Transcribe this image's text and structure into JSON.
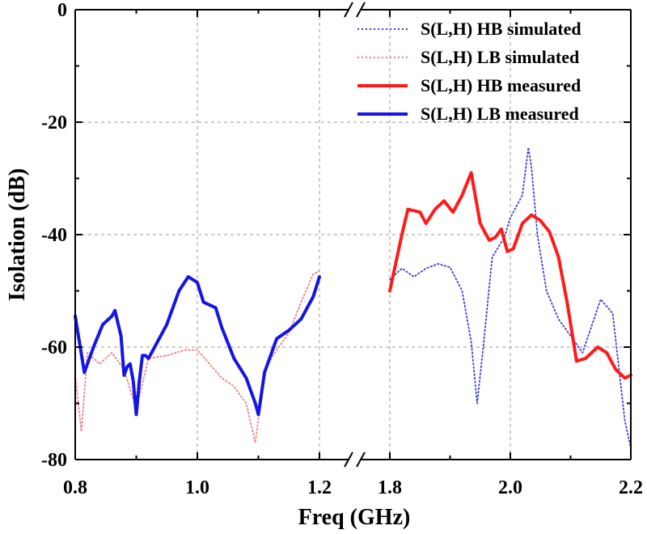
{
  "chart_data": {
    "type": "line",
    "xlabel": "Freq (GHz)",
    "ylabel": "Isolation (dB)",
    "ylim": [
      -80,
      0
    ],
    "y_ticks": [
      0,
      -20,
      -40,
      -60,
      -80
    ],
    "x_axis_break": true,
    "x_segments": [
      {
        "range": [
          0.8,
          1.2
        ],
        "ticks": [
          "0.8",
          "1.0",
          "1.2"
        ]
      },
      {
        "range": [
          1.8,
          2.2
        ],
        "ticks": [
          "1.8",
          "2.0",
          "2.2"
        ]
      }
    ],
    "grid": true,
    "legend_position": "top-right",
    "series": [
      {
        "name": "S(L,H) HB simulated",
        "color": "#3a3adf",
        "style": "dotted",
        "segment": 1,
        "x": [
          1.8,
          1.82,
          1.84,
          1.86,
          1.88,
          1.9,
          1.92,
          1.935,
          1.945,
          1.955,
          1.97,
          1.99,
          2.0,
          2.02,
          2.03,
          2.035,
          2.045,
          2.06,
          2.08,
          2.1,
          2.12,
          2.15,
          2.17,
          2.19,
          2.2
        ],
        "y": [
          -48,
          -46,
          -47.5,
          -46,
          -45.2,
          -45.8,
          -50,
          -59,
          -70,
          -60,
          -44,
          -40.5,
          -37,
          -33,
          -24.5,
          -28,
          -40,
          -50,
          -55,
          -58,
          -61,
          -51.5,
          -54,
          -73,
          -78
        ]
      },
      {
        "name": "S(L,H) LB simulated",
        "color": "#f08080",
        "style": "dotted",
        "segment": 0,
        "x": [
          0.8,
          0.81,
          0.82,
          0.84,
          0.86,
          0.88,
          0.9,
          0.92,
          0.95,
          0.98,
          1.0,
          1.02,
          1.04,
          1.06,
          1.08,
          1.095,
          1.11,
          1.13,
          1.15,
          1.17,
          1.19,
          1.2
        ],
        "y": [
          -65,
          -75,
          -61,
          -63,
          -61,
          -64,
          -71,
          -62,
          -61.5,
          -60.5,
          -60.5,
          -63,
          -65.5,
          -67,
          -70,
          -77,
          -64,
          -60.5,
          -57.5,
          -52,
          -47,
          -46.5
        ]
      },
      {
        "name": "S(L,H) HB measured",
        "color": "#ff1a1a",
        "style": "solid",
        "segment": 1,
        "x": [
          1.8,
          1.82,
          1.83,
          1.85,
          1.86,
          1.875,
          1.89,
          1.905,
          1.92,
          1.935,
          1.95,
          1.965,
          1.975,
          1.985,
          1.995,
          2.005,
          2.02,
          2.035,
          2.05,
          2.065,
          2.08,
          2.095,
          2.11,
          2.125,
          2.145,
          2.16,
          2.175,
          2.19,
          2.2
        ],
        "y": [
          -50,
          -40,
          -35.5,
          -36,
          -38,
          -35.5,
          -34,
          -36,
          -33,
          -29,
          -38,
          -41,
          -40.5,
          -39,
          -43,
          -42.5,
          -38,
          -36.5,
          -37.5,
          -39.5,
          -44,
          -52.5,
          -62.5,
          -62,
          -60,
          -61,
          -64,
          -65.5,
          -65
        ]
      },
      {
        "name": "S(L,H) LB measured",
        "color": "#1414e6",
        "style": "solid",
        "segment": 0,
        "x": [
          0.8,
          0.815,
          0.83,
          0.845,
          0.86,
          0.865,
          0.875,
          0.88,
          0.885,
          0.89,
          0.895,
          0.9,
          0.905,
          0.91,
          0.915,
          0.92,
          0.93,
          0.95,
          0.97,
          0.985,
          1.0,
          1.01,
          1.02,
          1.03,
          1.04,
          1.06,
          1.08,
          1.095,
          1.1,
          1.11,
          1.13,
          1.15,
          1.17,
          1.19,
          1.2
        ],
        "y": [
          -54.5,
          -64.5,
          -60,
          -56,
          -54.5,
          -53.5,
          -58,
          -65,
          -63.5,
          -63,
          -66,
          -72,
          -66,
          -61.5,
          -61.5,
          -62,
          -60,
          -56,
          -50,
          -47.5,
          -48.5,
          -52,
          -52.5,
          -53,
          -56.5,
          -62,
          -65.5,
          -70,
          -72,
          -64.5,
          -58.5,
          -57,
          -55,
          -51,
          -47.5
        ]
      }
    ]
  }
}
